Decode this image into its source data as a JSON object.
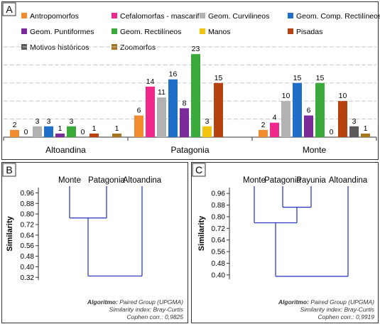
{
  "chart_data": [
    {
      "panel_label": "A",
      "type": "bar",
      "categories": [
        "Altoandina",
        "Patagonia",
        "Monte"
      ],
      "ylim": [
        0,
        25
      ],
      "grid": true,
      "legend_position": "top",
      "series": [
        {
          "name": "Antropomorfos",
          "color": "#f28a2e",
          "values": [
            2,
            6,
            2
          ]
        },
        {
          "name": "Cefalomorfas - mascarif.",
          "color": "#f0288a",
          "values": [
            0,
            14,
            4
          ]
        },
        {
          "name": "Geom. Curvilineos",
          "color": "#b2b2b2",
          "values": [
            3,
            11,
            10
          ]
        },
        {
          "name": "Geom. Comp.  Rectilíneos",
          "color": "#1f6fc8",
          "values": [
            3,
            16,
            15
          ]
        },
        {
          "name": "Geom. Puntiformes",
          "color": "#7b2a9a",
          "values": [
            1,
            8,
            6
          ]
        },
        {
          "name": "Geom. Rectilíneos",
          "color": "#3aaa3a",
          "values": [
            3,
            23,
            15
          ]
        },
        {
          "name": "Manos",
          "color": "#f2c40f",
          "values": [
            0,
            3,
            0
          ]
        },
        {
          "name": "Pisadas",
          "color": "#b8420f",
          "values": [
            1,
            15,
            10
          ]
        },
        {
          "name": "Motivos históricos",
          "color": "#5a5a5a",
          "values": [
            null,
            null,
            3
          ]
        },
        {
          "name": "Zoomorfos",
          "color": "#a8741e",
          "values": [
            1,
            null,
            1
          ]
        }
      ]
    },
    {
      "panel_label": "B",
      "type": "dendrogram",
      "leaves": [
        "Monte",
        "Patagonia",
        "Altoandina"
      ],
      "ylabel": "Similarity",
      "yticks": [
        "0.96",
        "0.88",
        "0.80",
        "0.72",
        "0.64",
        "0.56",
        "0.48",
        "0.40",
        "0.32"
      ],
      "ylim": [
        0.3,
        1.0
      ],
      "merges": [
        {
          "leaves": [
            "Monte",
            "Patagonia"
          ],
          "similarity": 0.77
        },
        {
          "leaves": [
            "Monte",
            "Patagonia",
            "Altoandina"
          ],
          "similarity": 0.33
        }
      ],
      "line_color": "#2030c0",
      "footer": [
        {
          "label": "Algoritmo:",
          "text": " Paired Group (UPGMA)"
        },
        {
          "label": "",
          "text": "Similarity index: Bray-Curtis"
        },
        {
          "label": "",
          "text": "Cophen corr.: 0,9825"
        }
      ]
    },
    {
      "panel_label": "C",
      "type": "dendrogram",
      "leaves": [
        "Monte",
        "Patagonia",
        "Payunia",
        "Altoandina"
      ],
      "ylabel": "Similarity",
      "yticks": [
        "0.96",
        "0.88",
        "0.80",
        "0.72",
        "0.64",
        "0.56",
        "0.48",
        "0.40"
      ],
      "ylim": [
        0.37,
        1.0
      ],
      "merges": [
        {
          "leaves": [
            "Patagonia",
            "Payunia"
          ],
          "similarity": 0.865
        },
        {
          "leaves": [
            "Monte",
            "Patagonia",
            "Payunia"
          ],
          "similarity": 0.758
        },
        {
          "leaves": [
            "Monte",
            "Patagonia",
            "Payunia",
            "Altoandina"
          ],
          "similarity": 0.39
        }
      ],
      "line_color": "#2030c0",
      "footer": [
        {
          "label": "Algoritmo:",
          "text": " Paired Group (UPGMA)"
        },
        {
          "label": "",
          "text": "Similarity index: Bray-Curtis"
        },
        {
          "label": "",
          "text": "Cophen corr.: 0,9919"
        }
      ]
    }
  ]
}
